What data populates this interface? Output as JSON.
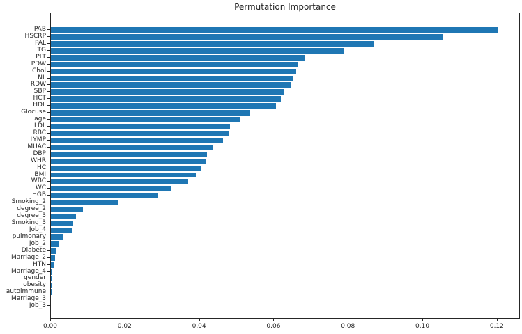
{
  "figure": {
    "background": "#ffffff"
  },
  "chart_data": {
    "type": "bar",
    "orientation": "horizontal",
    "title": "Permutation Importance",
    "xlabel": "",
    "ylabel": "",
    "categories": [
      "PAB",
      "HSCRP",
      "PAL",
      "TG",
      "PLT",
      "PDW",
      "Chol",
      "NL",
      "RDW",
      "SBP",
      "HCT",
      "HDL",
      "Glocuse",
      "age",
      "LDL",
      "RBC",
      "LYMP",
      "MUAC",
      "DBP",
      "WHR",
      "HC",
      "BMI",
      "WBC",
      "WC",
      "HGB",
      "Smoking_2",
      "degree_2",
      "degree_3",
      "Smoking_3",
      "Job_4",
      "pulmonary",
      "Job_2",
      "Diabete",
      "Marriage_2",
      "HTN",
      "Marriage_4",
      "gender",
      "obesity",
      "autoimmune",
      "Marriage_3",
      "Job_3"
    ],
    "values": [
      0.1202,
      0.1055,
      0.0867,
      0.0786,
      0.0681,
      0.0665,
      0.0659,
      0.0651,
      0.0644,
      0.0628,
      0.0618,
      0.0605,
      0.0536,
      0.051,
      0.0481,
      0.0477,
      0.0463,
      0.0437,
      0.042,
      0.0418,
      0.0405,
      0.039,
      0.0369,
      0.0324,
      0.0287,
      0.0179,
      0.0087,
      0.0067,
      0.006,
      0.0056,
      0.0031,
      0.0023,
      0.0014,
      0.0012,
      0.0009,
      0.0004,
      0.00012,
      5e-05,
      2e-05,
      1e-05,
      0.0
    ],
    "xlim": [
      0,
      0.1262
    ],
    "xtick_labels": [
      "0.00",
      "0.02",
      "0.04",
      "0.06",
      "0.08",
      "0.10",
      "0.12"
    ],
    "xtick_values": [
      0,
      0.02,
      0.04,
      0.06,
      0.08,
      0.1,
      0.12
    ],
    "grid": false,
    "legend": null,
    "bar_color": "#1f77b4",
    "axis_color": "#262626",
    "text_color": "#262626"
  }
}
